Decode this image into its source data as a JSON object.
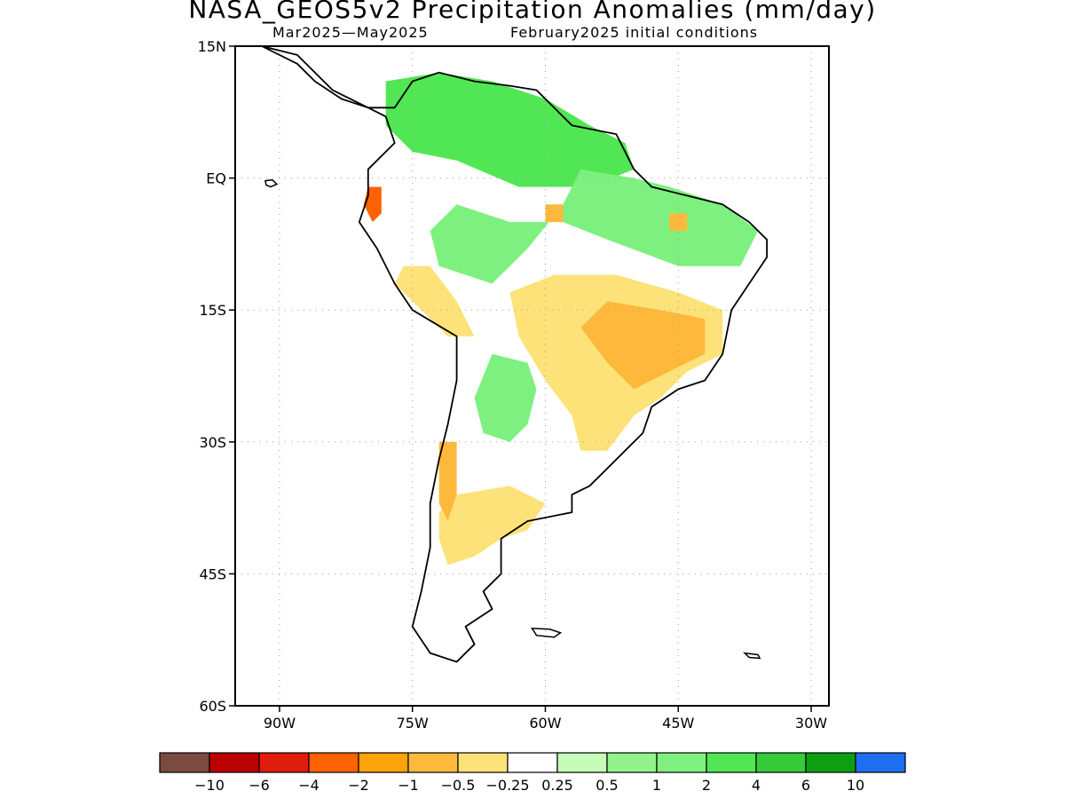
{
  "figure": {
    "title": "NASA_GEOS5v2 Precipitation Anomalies (mm/day)",
    "period": "Mar2025—May2025",
    "init": "February2025 initial conditions"
  },
  "map": {
    "lon_range": [
      -95,
      -28
    ],
    "lat_range": [
      -60,
      15
    ],
    "lon_ticks": [
      {
        "value": -90,
        "label": "90W"
      },
      {
        "value": -75,
        "label": "75W"
      },
      {
        "value": -60,
        "label": "60W"
      },
      {
        "value": -45,
        "label": "45W"
      },
      {
        "value": -30,
        "label": "30W"
      }
    ],
    "lat_ticks": [
      {
        "value": 15,
        "label": "15N"
      },
      {
        "value": 0,
        "label": "EQ"
      },
      {
        "value": -15,
        "label": "15S"
      },
      {
        "value": -30,
        "label": "30S"
      },
      {
        "value": -45,
        "label": "45S"
      },
      {
        "value": -60,
        "label": "60S"
      }
    ],
    "grid": "dotted",
    "land_outline": [
      [
        -92,
        15
      ],
      [
        -88,
        14
      ],
      [
        -84,
        10
      ],
      [
        -80,
        8
      ],
      [
        -77,
        8
      ],
      [
        -75,
        11
      ],
      [
        -72,
        12
      ],
      [
        -68,
        11
      ],
      [
        -64,
        10.5
      ],
      [
        -61,
        10
      ],
      [
        -57,
        6
      ],
      [
        -52,
        5
      ],
      [
        -50,
        1
      ],
      [
        -48,
        -1
      ],
      [
        -44,
        -2
      ],
      [
        -40,
        -3
      ],
      [
        -37,
        -5
      ],
      [
        -35,
        -7
      ],
      [
        -35,
        -9
      ],
      [
        -37,
        -12
      ],
      [
        -39,
        -15
      ],
      [
        -40,
        -20
      ],
      [
        -42,
        -23
      ],
      [
        -45,
        -24
      ],
      [
        -48,
        -26
      ],
      [
        -49,
        -29
      ],
      [
        -51,
        -31
      ],
      [
        -53,
        -33
      ],
      [
        -55,
        -35
      ],
      [
        -57,
        -36
      ],
      [
        -57,
        -38
      ],
      [
        -62,
        -39
      ],
      [
        -65,
        -41
      ],
      [
        -65,
        -45
      ],
      [
        -67,
        -47
      ],
      [
        -66,
        -49
      ],
      [
        -69,
        -51
      ],
      [
        -68,
        -53
      ],
      [
        -70,
        -55
      ],
      [
        -73,
        -54
      ],
      [
        -75,
        -51
      ],
      [
        -74,
        -47
      ],
      [
        -73,
        -42
      ],
      [
        -73,
        -37
      ],
      [
        -72,
        -32
      ],
      [
        -71,
        -28
      ],
      [
        -70,
        -23
      ],
      [
        -70,
        -18
      ],
      [
        -75,
        -15
      ],
      [
        -77,
        -12
      ],
      [
        -79,
        -8
      ],
      [
        -81,
        -5
      ],
      [
        -80,
        -2
      ],
      [
        -80,
        1
      ],
      [
        -77,
        4
      ],
      [
        -78,
        7
      ],
      [
        -80,
        8
      ],
      [
        -83,
        9
      ],
      [
        -86,
        11
      ],
      [
        -88,
        13
      ],
      [
        -92,
        15
      ]
    ],
    "islands": [
      [
        [
          -91.6,
          -0.3
        ],
        [
          -90.8,
          -0.2
        ],
        [
          -90.3,
          -0.7
        ],
        [
          -91.0,
          -1.0
        ],
        [
          -91.5,
          -0.8
        ]
      ],
      [
        [
          -61.5,
          -51.2
        ],
        [
          -59.5,
          -51.3
        ],
        [
          -58.3,
          -51.7
        ],
        [
          -59.0,
          -52.2
        ],
        [
          -61.0,
          -52.0
        ]
      ],
      [
        [
          -37.5,
          -54.0
        ],
        [
          -36.0,
          -54.2
        ],
        [
          -35.8,
          -54.6
        ],
        [
          -37.0,
          -54.5
        ]
      ]
    ],
    "anomaly_patches": [
      {
        "category": "2",
        "color": "#51e654",
        "points": [
          [
            -78,
            11
          ],
          [
            -72,
            12
          ],
          [
            -66,
            11
          ],
          [
            -60,
            9
          ],
          [
            -55,
            6
          ],
          [
            -51,
            4
          ],
          [
            -50,
            1
          ],
          [
            -55,
            -1
          ],
          [
            -63,
            -1
          ],
          [
            -70,
            2
          ],
          [
            -75,
            3
          ],
          [
            -78,
            6
          ]
        ]
      },
      {
        "category": "1",
        "color": "#7ef07f",
        "points": [
          [
            -56,
            1
          ],
          [
            -50,
            0
          ],
          [
            -46,
            -1
          ],
          [
            -40,
            -3
          ],
          [
            -36,
            -6
          ],
          [
            -38,
            -10
          ],
          [
            -45,
            -10
          ],
          [
            -53,
            -7
          ],
          [
            -58,
            -5
          ],
          [
            -64,
            -5
          ],
          [
            -70,
            -3
          ],
          [
            -73,
            -6
          ],
          [
            -72,
            -10
          ],
          [
            -66,
            -12
          ],
          [
            -62,
            -8
          ],
          [
            -58,
            -3
          ]
        ]
      },
      {
        "category": "1",
        "color": "#7ef07f",
        "points": [
          [
            -66,
            -20
          ],
          [
            -62,
            -21
          ],
          [
            -61,
            -24
          ],
          [
            -62,
            -28
          ],
          [
            -64,
            -30
          ],
          [
            -67,
            -29
          ],
          [
            -68,
            -25
          ]
        ]
      },
      {
        "category": "-0.5",
        "color": "#fde27a",
        "points": [
          [
            -64,
            -13
          ],
          [
            -59,
            -11
          ],
          [
            -52,
            -11
          ],
          [
            -45,
            -13
          ],
          [
            -40,
            -15
          ],
          [
            -40,
            -20
          ],
          [
            -44,
            -22
          ],
          [
            -47,
            -25
          ],
          [
            -50,
            -27
          ],
          [
            -53,
            -31
          ],
          [
            -56,
            -31
          ],
          [
            -57,
            -27
          ],
          [
            -60,
            -23
          ],
          [
            -63,
            -18
          ]
        ]
      },
      {
        "category": "-1",
        "color": "#feb93c",
        "points": [
          [
            -53,
            -14
          ],
          [
            -47,
            -15
          ],
          [
            -42,
            -16
          ],
          [
            -42,
            -20
          ],
          [
            -46,
            -22
          ],
          [
            -50,
            -24
          ],
          [
            -53,
            -21
          ],
          [
            -56,
            -17
          ]
        ]
      },
      {
        "category": "-0.5",
        "color": "#fde27a",
        "points": [
          [
            -70,
            -36
          ],
          [
            -64,
            -35
          ],
          [
            -60,
            -37
          ],
          [
            -62,
            -40
          ],
          [
            -65,
            -41
          ],
          [
            -68,
            -43
          ],
          [
            -71,
            -44
          ],
          [
            -72,
            -41
          ],
          [
            -72,
            -38
          ]
        ]
      },
      {
        "category": "-1",
        "color": "#feb93c",
        "points": [
          [
            -72,
            -30
          ],
          [
            -70,
            -30
          ],
          [
            -70,
            -36
          ],
          [
            -71,
            -39
          ],
          [
            -72,
            -37
          ]
        ]
      },
      {
        "category": "-0.5",
        "color": "#fde27a",
        "points": [
          [
            -76,
            -10
          ],
          [
            -73,
            -10
          ],
          [
            -70,
            -14
          ],
          [
            -68,
            -18
          ],
          [
            -71,
            -18
          ],
          [
            -74,
            -15
          ],
          [
            -77,
            -12
          ]
        ]
      },
      {
        "category": "-2",
        "color": "#fe6202",
        "points": [
          [
            -80,
            -1
          ],
          [
            -78.5,
            -1
          ],
          [
            -78.5,
            -4
          ],
          [
            -79.5,
            -5
          ],
          [
            -80.5,
            -3
          ]
        ]
      },
      {
        "category": "-1",
        "color": "#feb93c",
        "points": [
          [
            -60,
            -3
          ],
          [
            -58,
            -3
          ],
          [
            -58,
            -5
          ],
          [
            -60,
            -5
          ]
        ]
      },
      {
        "category": "-1",
        "color": "#feb93c",
        "points": [
          [
            -46,
            -4
          ],
          [
            -44,
            -4
          ],
          [
            -44,
            -6
          ],
          [
            -46,
            -6
          ]
        ]
      }
    ]
  },
  "colorbar": {
    "bins": [
      {
        "color": "#7b4b40"
      },
      {
        "color": "#bb0000"
      },
      {
        "color": "#e01c0c"
      },
      {
        "color": "#fe6202"
      },
      {
        "color": "#fea309"
      },
      {
        "color": "#feb93c"
      },
      {
        "color": "#fde27a"
      },
      {
        "color": "#ffffff"
      },
      {
        "color": "#c5fdb8"
      },
      {
        "color": "#93f28d"
      },
      {
        "color": "#7ef07f"
      },
      {
        "color": "#51e654"
      },
      {
        "color": "#35cb39"
      },
      {
        "color": "#0c9f11"
      },
      {
        "color": "#1d6ff0"
      }
    ],
    "labels": [
      "−10",
      "−6",
      "−4",
      "−2",
      "−1",
      "−0.5",
      "−0.25",
      "0.25",
      "0.5",
      "1",
      "2",
      "4",
      "6",
      "10"
    ]
  }
}
